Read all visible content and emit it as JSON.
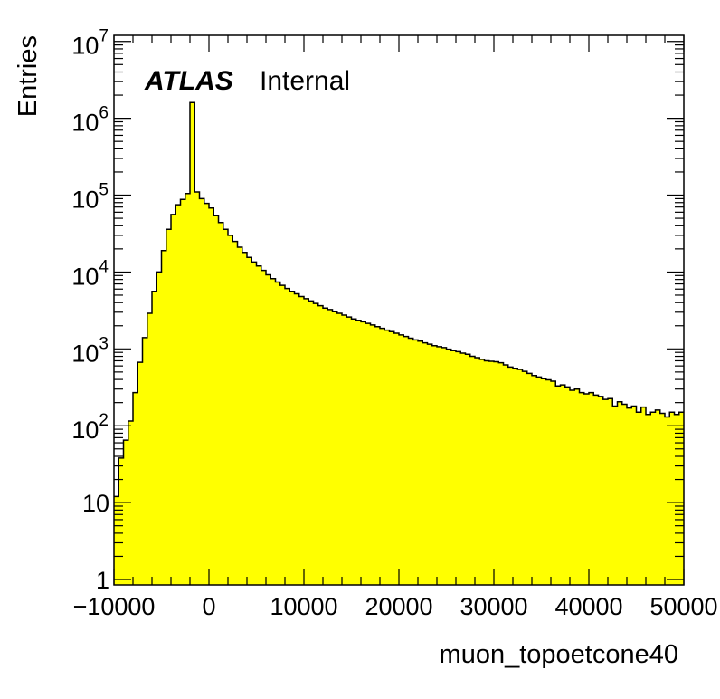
{
  "chart_data": {
    "type": "histogram",
    "xlabel": "muon_topoetcone40",
    "ylabel": "Entries",
    "xlim": [
      -10000,
      50000
    ],
    "ylim": [
      0.85,
      12000000
    ],
    "yscale": "log",
    "grid": false,
    "legend": "none",
    "fill_color": "#ffff00",
    "line_color": "#000000",
    "annotation": {
      "bold": "ATLAS",
      "normal": "Internal"
    },
    "x_tick_labels": [
      "−10000",
      "0",
      "10000",
      "20000",
      "30000",
      "40000",
      "50000"
    ],
    "x_tick_values": [
      -10000,
      0,
      10000,
      20000,
      30000,
      40000,
      50000
    ],
    "y_tick_labels": [
      {
        "base": "1",
        "exp": "",
        "value": 1
      },
      {
        "base": "10",
        "exp": "",
        "value": 10
      },
      {
        "base": "10",
        "exp": "2",
        "value": 100
      },
      {
        "base": "10",
        "exp": "3",
        "value": 1000
      },
      {
        "base": "10",
        "exp": "4",
        "value": 10000
      },
      {
        "base": "10",
        "exp": "5",
        "value": 100000
      },
      {
        "base": "10",
        "exp": "6",
        "value": 1000000
      },
      {
        "base": "10",
        "exp": "7",
        "value": 10000000
      }
    ],
    "bin_start": -10000,
    "bin_width": 500,
    "values": [
      12,
      38,
      65,
      115,
      270,
      670,
      1400,
      2900,
      5600,
      10000,
      19000,
      36000,
      56000,
      75000,
      88000,
      105000,
      1600000,
      110000,
      90000,
      78000,
      68000,
      54000,
      44000,
      36000,
      30000,
      25000,
      21000,
      18000,
      15500,
      13500,
      12000,
      10500,
      9200,
      8200,
      7400,
      6700,
      6100,
      5600,
      5200,
      4800,
      4500,
      4200,
      3900,
      3650,
      3400,
      3250,
      3050,
      2900,
      2750,
      2600,
      2450,
      2350,
      2250,
      2150,
      2050,
      1950,
      1850,
      1750,
      1680,
      1600,
      1520,
      1450,
      1380,
      1310,
      1260,
      1200,
      1150,
      1100,
      1070,
      1040,
      990,
      950,
      920,
      880,
      850,
      800,
      770,
      730,
      700,
      690,
      680,
      660,
      620,
      580,
      560,
      540,
      510,
      480,
      450,
      430,
      410,
      395,
      380,
      330,
      340,
      320,
      290,
      300,
      270,
      260,
      270,
      250,
      240,
      220,
      225,
      180,
      205,
      190,
      170,
      180,
      150,
      175,
      140,
      150,
      160,
      145,
      130,
      150,
      140,
      150
    ]
  }
}
